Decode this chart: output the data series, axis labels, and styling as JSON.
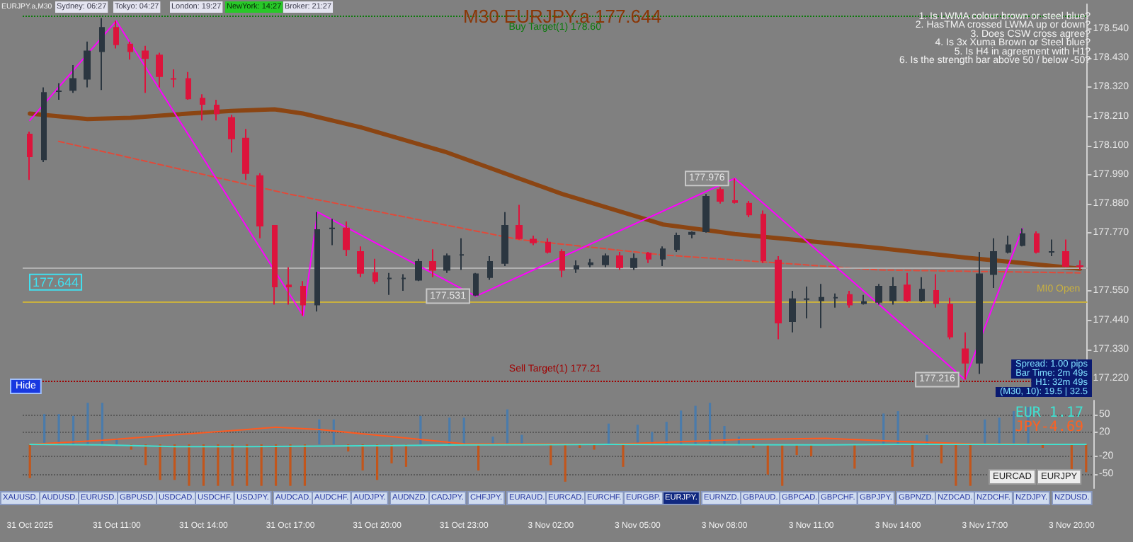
{
  "chart_data": [
    {
      "type": "candlestick",
      "title": "M30 EURJPY.a 177.644",
      "categories": [
        null,
        null,
        null,
        null,
        null,
        null,
        null,
        null,
        null,
        null,
        null,
        null,
        null,
        null,
        null,
        null,
        null,
        null,
        null,
        null,
        null,
        null,
        null,
        null,
        null,
        null,
        null,
        null,
        null,
        null,
        null,
        null,
        null,
        null,
        null,
        null,
        null,
        null,
        null,
        null,
        null,
        null,
        null,
        null,
        null,
        null,
        null,
        null,
        null,
        null,
        null,
        null,
        null,
        null,
        null,
        null,
        null,
        null,
        null,
        null,
        null,
        null,
        null,
        null,
        null,
        null,
        null,
        null,
        null,
        null,
        null,
        null,
        null,
        null
      ],
      "ohlc": [
        [
          178.142,
          178.153,
          177.97,
          178.059
        ],
        [
          178.048,
          178.32,
          178.038,
          178.299
        ],
        [
          178.305,
          178.336,
          178.273,
          178.305
        ],
        [
          178.31,
          178.404,
          178.299,
          178.352
        ],
        [
          178.352,
          178.493,
          178.32,
          178.456
        ],
        [
          178.456,
          178.582,
          178.31,
          178.545
        ],
        [
          178.545,
          178.571,
          178.467,
          178.482
        ],
        [
          178.482,
          178.493,
          178.425,
          178.456
        ],
        [
          178.456,
          178.477,
          178.299,
          178.43
        ],
        [
          178.441,
          178.451,
          178.32,
          178.362
        ],
        [
          178.352,
          178.388,
          178.32,
          178.352
        ],
        [
          178.352,
          178.378,
          178.273,
          178.278
        ],
        [
          178.278,
          178.294,
          178.195,
          178.257
        ],
        [
          178.252,
          178.273,
          178.195,
          178.221
        ],
        [
          178.205,
          178.216,
          178.074,
          178.127
        ],
        [
          178.127,
          178.163,
          177.97,
          177.996
        ],
        [
          177.985,
          177.996,
          177.75,
          177.797
        ],
        [
          177.797,
          177.797,
          177.499,
          177.567
        ],
        [
          177.572,
          177.64,
          177.499,
          177.567
        ],
        [
          177.567,
          177.588,
          177.457,
          177.499
        ],
        [
          177.499,
          177.849,
          177.473,
          177.781
        ],
        [
          177.787,
          177.823,
          177.724,
          177.787
        ],
        [
          177.787,
          177.813,
          177.682,
          177.708
        ],
        [
          177.698,
          177.719,
          177.603,
          177.619
        ],
        [
          177.619,
          177.672,
          177.577,
          177.588
        ],
        [
          177.598,
          177.619,
          177.536,
          177.598
        ],
        [
          177.598,
          177.614,
          177.551,
          177.598
        ],
        [
          177.593,
          177.672,
          177.588,
          177.661
        ],
        [
          177.661,
          177.708,
          177.603,
          177.63
        ],
        [
          177.63,
          177.692,
          177.619,
          177.682
        ],
        [
          177.687,
          177.75,
          177.63,
          177.687
        ],
        [
          177.536,
          177.619,
          177.531,
          177.614
        ],
        [
          177.603,
          177.682,
          177.593,
          177.661
        ],
        [
          177.656,
          177.849,
          177.645,
          177.797
        ],
        [
          177.797,
          177.876,
          177.745,
          177.75
        ],
        [
          177.745,
          177.76,
          177.724,
          177.734
        ],
        [
          177.734,
          177.75,
          177.692,
          177.698
        ],
        [
          177.698,
          177.708,
          177.603,
          177.63
        ],
        [
          177.635,
          177.666,
          177.619,
          177.645
        ],
        [
          177.651,
          177.672,
          177.64,
          177.656
        ],
        [
          177.651,
          177.692,
          177.64,
          177.682
        ],
        [
          177.682,
          177.698,
          177.63,
          177.64
        ],
        [
          177.64,
          177.692,
          177.63,
          177.672
        ],
        [
          177.692,
          177.698,
          177.656,
          177.672
        ],
        [
          177.672,
          177.719,
          177.645,
          177.708
        ],
        [
          177.708,
          177.771,
          177.698,
          177.76
        ],
        [
          177.766,
          177.776,
          177.75,
          177.771
        ],
        [
          177.776,
          177.917,
          177.771,
          177.907
        ],
        [
          177.933,
          177.943,
          177.881,
          177.891
        ],
        [
          177.891,
          177.976,
          177.881,
          177.886
        ],
        [
          177.881,
          177.891,
          177.829,
          177.839
        ],
        [
          177.839,
          177.855,
          177.656,
          177.666
        ],
        [
          177.666,
          177.682,
          177.368,
          177.431
        ],
        [
          177.436,
          177.551,
          177.394,
          177.52
        ],
        [
          177.52,
          177.567,
          177.447,
          177.52
        ],
        [
          177.515,
          177.577,
          177.41,
          177.525
        ],
        [
          177.525,
          177.541,
          177.488,
          177.525
        ],
        [
          177.536,
          177.551,
          177.488,
          177.499
        ],
        [
          177.504,
          177.536,
          177.499,
          177.509
        ],
        [
          177.509,
          177.577,
          177.499,
          177.567
        ],
        [
          177.515,
          177.603,
          177.499,
          177.567
        ],
        [
          177.572,
          177.619,
          177.509,
          177.515
        ],
        [
          177.515,
          177.603,
          177.509,
          177.556
        ],
        [
          177.551,
          177.614,
          177.488,
          177.504
        ],
        [
          177.499,
          177.525,
          177.368,
          177.378
        ],
        [
          177.331,
          177.394,
          177.216,
          177.279
        ],
        [
          177.279,
          177.698,
          177.237,
          177.614
        ],
        [
          177.614,
          177.75,
          177.562,
          177.698
        ],
        [
          177.698,
          177.76,
          177.692,
          177.724
        ],
        [
          177.724,
          177.787,
          177.719,
          177.766
        ],
        [
          177.766,
          177.776,
          177.692,
          177.698
        ],
        [
          177.698,
          177.745,
          177.682,
          177.698
        ],
        [
          177.698,
          177.745,
          177.64,
          177.645
        ],
        [
          177.645,
          177.666,
          177.63,
          177.644
        ]
      ],
      "series": [
        {
          "type": "line",
          "color": "#8b4513",
          "line_style": "solid",
          "values": [
            178.221,
            null,
            null,
            null,
            178.2,
            null,
            null,
            178.205,
            null,
            null,
            null,
            178.221,
            null,
            null,
            178.231,
            null,
            null,
            178.237,
            null,
            178.221,
            null,
            null,
            null,
            178.169,
            null,
            null,
            null,
            null,
            null,
            178.074,
            null,
            null,
            null,
            null,
            null,
            null,
            null,
            177.917,
            null,
            null,
            null,
            null,
            null,
            null,
            177.802,
            null,
            null,
            null,
            null,
            177.766,
            null,
            null,
            null,
            null,
            177.74,
            null,
            null,
            null,
            null,
            177.713,
            null,
            null,
            null,
            null,
            null,
            177.677,
            null,
            null,
            null,
            177.656,
            null,
            null,
            null,
            177.635
          ]
        },
        {
          "type": "line",
          "color": "#e04a3a",
          "line_style": "dashed",
          "values": [
            null,
            null,
            178.116,
            null,
            null,
            null,
            null,
            null,
            null,
            null,
            null,
            null,
            null,
            null,
            null,
            null,
            null,
            null,
            177.917,
            null,
            null,
            null,
            null,
            null,
            null,
            null,
            null,
            null,
            null,
            null,
            null,
            null,
            null,
            null,
            177.745,
            null,
            null,
            null,
            null,
            null,
            null,
            null,
            null,
            null,
            177.687,
            null,
            null,
            null,
            null,
            null,
            null,
            null,
            null,
            null,
            null,
            null,
            null,
            null,
            null,
            177.63,
            null,
            null,
            null,
            null,
            null,
            null,
            null,
            null,
            null,
            null,
            null,
            null,
            null,
            177.619
          ]
        },
        {
          "type": "line",
          "color": "#ff00ff",
          "line_style": "solid",
          "values": [
            178.195,
            null,
            null,
            null,
            null,
            null,
            178.571,
            null,
            null,
            null,
            null,
            null,
            null,
            null,
            null,
            null,
            null,
            null,
            null,
            177.457,
            177.849,
            null,
            null,
            null,
            null,
            null,
            null,
            null,
            null,
            null,
            null,
            177.531,
            null,
            null,
            null,
            null,
            null,
            null,
            null,
            null,
            null,
            null,
            null,
            null,
            null,
            null,
            null,
            null,
            null,
            177.976,
            null,
            null,
            null,
            null,
            null,
            null,
            null,
            null,
            null,
            null,
            null,
            null,
            null,
            null,
            null,
            177.216,
            null,
            null,
            null,
            177.787,
            null,
            null,
            null,
            null
          ]
        }
      ],
      "ylim": [
        177.185,
        178.634
      ],
      "yticks": [
        {
          "value": 177.22,
          "label": "177.220"
        },
        {
          "value": 177.33,
          "label": "177.330"
        },
        {
          "value": 177.44,
          "label": "177.440"
        },
        {
          "value": 177.55,
          "label": "177.550"
        },
        {
          "value": 177.77,
          "label": "177.770"
        },
        {
          "value": 177.88,
          "label": "177.880"
        },
        {
          "value": 177.99,
          "label": "177.990"
        },
        {
          "value": 178.1,
          "label": "178.100"
        },
        {
          "value": 178.21,
          "label": "178.210"
        },
        {
          "value": 178.32,
          "label": "178.320"
        },
        {
          "value": 178.43,
          "label": "178.430"
        },
        {
          "value": 178.54,
          "label": "178.540"
        }
      ],
      "ref_lines": [
        {
          "axis": "y",
          "value": 177.644,
          "label": "177.644"
        },
        {
          "axis": "y",
          "value": 177.513,
          "label": "MI0 Open",
          "color": "#c8b040",
          "line_style": "solid"
        },
        {
          "axis": "y",
          "value": 178.589,
          "label": "Buy Target(1) 178.60",
          "color": "#0b7a0b",
          "line_style": "dotted"
        },
        {
          "axis": "y",
          "value": 177.207,
          "label": "Sell Target(1) 177.21",
          "color": "#a00000",
          "line_style": "dotted"
        }
      ],
      "annotations": [
        "EURJPY.a,M30",
        "Sydney: 06:27",
        "Tokyo: 04:27",
        "London: 19:27",
        "NewYork: 14:27",
        "Broker: 21:27",
        "1. Is LWMA colour brown or steel blue?",
        "2. HasTMA crossed LWMA up or down?",
        "3. Does CSW cross agree?",
        "4. Is 3x Xuma Brown or Steel blue?",
        "5. Is H4 in agreement with H1?",
        "6. Is the strength bar above 50 / below -50?",
        "Hide",
        "Spread: 1.00 pips",
        "Bar Time: 2m 49s",
        "H1: 32m 49s",
        "(M30, 10): 19.5 | 32.5",
        {
          "text": "177.976",
          "y": 177.976
        },
        {
          "text": "177.531",
          "y": 177.531
        },
        {
          "text": "177.216",
          "y": 177.216
        }
      ]
    },
    {
      "type": "bar",
      "categories": [
        "31 Oct 2025",
        null,
        null,
        null,
        null,
        null,
        "31 Oct 11:00",
        null,
        null,
        null,
        null,
        null,
        "31 Oct 14:00",
        null,
        null,
        null,
        null,
        null,
        "31 Oct 17:00",
        null,
        null,
        null,
        null,
        null,
        "31 Oct 20:00",
        null,
        null,
        null,
        null,
        null,
        "31 Oct 23:00",
        null,
        null,
        null,
        null,
        null,
        "3 Nov 02:00",
        null,
        null,
        null,
        null,
        null,
        "3 Nov 05:00",
        null,
        null,
        null,
        null,
        null,
        "3 Nov 08:00",
        null,
        null,
        null,
        null,
        null,
        "3 Nov 11:00",
        null,
        null,
        null,
        null,
        null,
        "3 Nov 14:00",
        null,
        null,
        null,
        null,
        null,
        "3 Nov 17:00",
        null,
        null,
        null,
        null,
        null,
        "3 Nov 20:00",
        null
      ],
      "series": [
        {
          "type": "bar",
          "values": [
            -57,
            51,
            51,
            48,
            70,
            70,
            10,
            -9,
            -35,
            -60,
            -60,
            -70,
            -70,
            -70,
            -70,
            -70,
            -70,
            -70,
            -70,
            -70,
            42,
            42,
            -12,
            -44,
            -60,
            -32,
            -38,
            48,
            null,
            45,
            45,
            -44,
            13,
            59,
            16,
            0,
            -35,
            -63,
            -6,
            -9,
            35,
            -38,
            33,
            21,
            38,
            57,
            65,
            70,
            31,
            13,
            -6,
            -51,
            -70,
            -18,
            -20,
            null,
            0,
            -41,
            0,
            52,
            56,
            -38,
            16,
            -32,
            -70,
            -70,
            42,
            45,
            56,
            63,
            -6,
            0,
            -44,
            -47
          ],
          "colors": [
            "#c2561c",
            "#4a7bab",
            "#4a7bab",
            "#4a7bab",
            "#4a7bab",
            "#4a7bab",
            "#4a7bab",
            "#c2561c",
            "#c2561c",
            "#c2561c",
            "#c2561c",
            "#c2561c",
            "#c2561c",
            "#c2561c",
            "#c2561c",
            "#c2561c",
            "#c2561c",
            "#c2561c",
            "#c2561c",
            "#c2561c",
            "#4a7bab",
            "#4a7bab",
            "#c2561c",
            "#c2561c",
            "#c2561c",
            "#c2561c",
            "#c2561c",
            "#4a7bab",
            "#c2561c",
            "#4a7bab",
            "#4a7bab",
            "#c2561c",
            "#4a7bab",
            "#4a7bab",
            "#4a7bab",
            "#c2561c",
            "#c2561c",
            "#c2561c",
            "#c2561c",
            "#c2561c",
            "#4a7bab",
            "#c2561c",
            "#4a7bab",
            "#4a7bab",
            "#4a7bab",
            "#4a7bab",
            "#4a7bab",
            "#4a7bab",
            "#4a7bab",
            "#4a7bab",
            "#c2561c",
            "#c2561c",
            "#c2561c",
            "#c2561c",
            "#c2561c",
            "#c2561c",
            "#c2561c",
            "#c2561c",
            "#c2561c",
            "#4a7bab",
            "#4a7bab",
            "#c2561c",
            "#4a7bab",
            "#c2561c",
            "#c2561c",
            "#c2561c",
            "#4a7bab",
            "#4a7bab",
            "#4a7bab",
            "#4a7bab",
            "#c2561c",
            "#c2561c",
            "#c2561c",
            "#c2561c"
          ]
        },
        {
          "type": "line",
          "color": "#ff5a1f",
          "values": [
            0,
            null,
            null,
            null,
            null,
            7,
            null,
            null,
            null,
            null,
            16,
            null,
            null,
            null,
            null,
            25,
            null,
            29,
            null,
            null,
            25,
            null,
            null,
            null,
            null,
            13,
            null,
            null,
            null,
            null,
            1,
            null,
            null,
            null,
            null,
            null,
            null,
            null,
            null,
            null,
            0,
            null,
            null,
            null,
            null,
            null,
            null,
            null,
            null,
            8,
            null,
            null,
            null,
            null,
            null,
            10,
            null,
            null,
            null,
            null,
            5,
            null,
            null,
            null,
            null,
            1,
            null,
            null,
            null,
            null,
            null,
            null,
            null,
            0
          ]
        },
        {
          "type": "line",
          "color": "#40e0d0",
          "values": [
            0,
            null,
            null,
            null,
            null,
            -1,
            null,
            null,
            null,
            null,
            -4,
            null,
            null,
            null,
            null,
            -4,
            null,
            null,
            null,
            null,
            -3,
            null,
            null,
            null,
            null,
            -2,
            null,
            null,
            null,
            null,
            -1,
            null,
            null,
            null,
            null,
            null,
            null,
            null,
            null,
            null,
            0,
            null,
            null,
            null,
            null,
            null,
            null,
            null,
            null,
            null,
            null,
            null,
            null,
            null,
            null,
            -1,
            null,
            null,
            null,
            null,
            0,
            null,
            null,
            null,
            null,
            null,
            null,
            null,
            null,
            null,
            null,
            null,
            null,
            0
          ]
        }
      ],
      "ylim": [
        -74,
        74
      ],
      "yticks": [
        -50,
        -20,
        20,
        50
      ],
      "grid": "y",
      "annotations": [
        "EUR 1.17",
        "JPY-4.69",
        "EURCAD",
        "EURJPY",
        "XAUUSD.",
        "AUDUSD.",
        "EURUSD.",
        "GBPUSD.",
        "USDCAD.",
        "USDCHF.",
        "USDJPY.",
        "AUDCAD.",
        "AUDCHF.",
        "AUDJPY.",
        "AUDNZD.",
        "CADJPY.",
        "CHFJPY.",
        "EURAUD.",
        "EURCAD.",
        "EURCHF.",
        "EURGBP.",
        "EURJPY.",
        "EURNZD.",
        "GBPAUD.",
        "GBPCAD.",
        "GBPCHF.",
        "GBPJPY.",
        "GBPNZD.",
        "NZDCAD.",
        "NZDCHF.",
        "NZDJPY.",
        "NZDUSD."
      ]
    }
  ]
}
